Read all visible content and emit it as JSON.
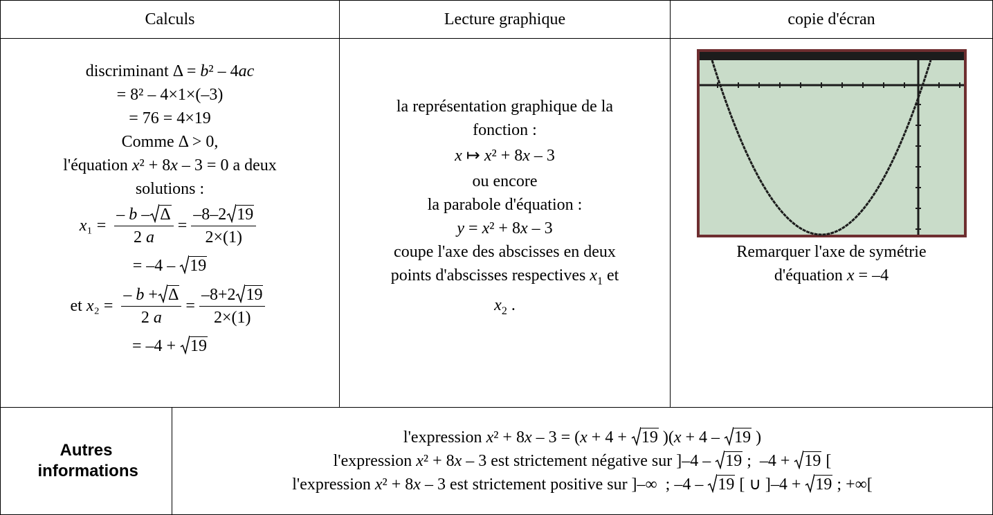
{
  "header": {
    "c1": "Calculs",
    "c2": "Lecture graphique",
    "c3": "copie d'écran"
  },
  "calc": {
    "l1": [
      "discriminant Δ = ",
      "b",
      "² – 4",
      "ac"
    ],
    "l2": "= 8² – 4×1×(–3)",
    "l3": "= 76 = 4×19",
    "l4": "Comme Δ > 0,",
    "l5": [
      "l'équation ",
      "x",
      "² + 8",
      "x",
      " – 3 = 0 a deux"
    ],
    "l6": "solutions :",
    "x1": {
      "lhs": [
        "x",
        "₁ = "
      ],
      "n1": [
        "– ",
        "b",
        " –"
      ],
      "r1": "Δ",
      "d1": [
        "2 ",
        "a"
      ],
      "eq": "=",
      "n2": "–8–2",
      "r2": "19",
      "d2": "2×(1)",
      "res": "= –4 – ",
      "r3": "19"
    },
    "x2": {
      "lhs": [
        "et ",
        "x",
        "₂ = "
      ],
      "n1": [
        "– ",
        "b",
        " +"
      ],
      "r1": "Δ",
      "d1": [
        "2 ",
        "a"
      ],
      "eq": "=",
      "n2": "–8+2",
      "r2": "19",
      "d2": "2×(1)",
      "res": "= –4 + ",
      "r3": "19"
    }
  },
  "lecture": {
    "l1": "la représentation graphique de la",
    "l2": "fonction :",
    "l3": [
      "x",
      " ↦ ",
      "x",
      "² + 8",
      "x",
      " – 3"
    ],
    "l4": "ou encore",
    "l5": "la parabole d'équation :",
    "l6": [
      "y",
      " = ",
      "x",
      "² + 8",
      "x",
      " – 3"
    ],
    "l7": "coupe l'axe des abscisses en deux",
    "l8": [
      "points d'abscisses respectives ",
      "x",
      "1",
      " et"
    ],
    "l9": [
      "x",
      "2",
      " ."
    ]
  },
  "copie": {
    "l1": "Remarquer l'axe de symétrie",
    "l2": [
      "d'équation ",
      "x",
      " = –4"
    ]
  },
  "autres": {
    "label": "Autres informations",
    "e1": [
      "l'expression ",
      "x",
      "² + 8",
      "x",
      " – 3 = (",
      "x",
      " + 4 + ",
      "19",
      " )(",
      "x",
      " + 4 – ",
      "19",
      " )"
    ],
    "e2": [
      "l'expression ",
      "x",
      "² + 8",
      "x",
      " – 3 est strictement négative sur ]–4 – ",
      "19",
      " ;  –4 + ",
      "19",
      " ["
    ],
    "e3": [
      "l'expression ",
      "x",
      "² + 8",
      "x",
      " – 3 est strictement positive sur ]–∞  ; –4 – ",
      "19",
      " [ ∪ ]–4 + ",
      "19",
      " ; +∞["
    ]
  }
}
